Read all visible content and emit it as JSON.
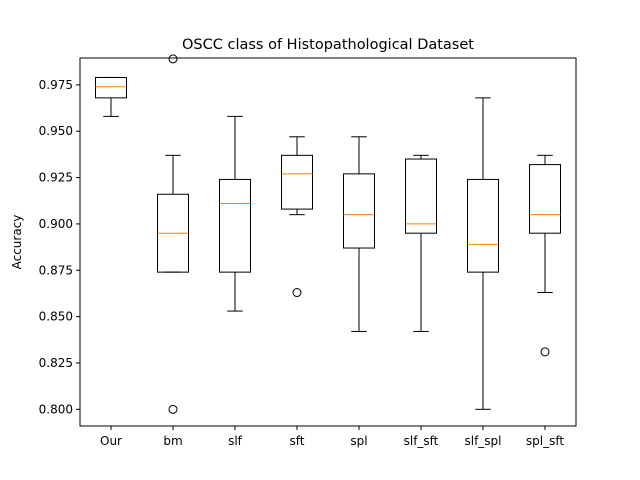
{
  "chart_data": {
    "type": "box",
    "title": "OSCC class of Histopathological Dataset",
    "xlabel": "",
    "ylabel": "Accuracy",
    "ylim": [
      0.791,
      0.9895
    ],
    "yticks": [
      "0.800",
      "0.825",
      "0.850",
      "0.875",
      "0.900",
      "0.925",
      "0.950",
      "0.975"
    ],
    "categories": [
      "Our",
      "bm",
      "slf",
      "sft",
      "spl",
      "slf_sft",
      "slf_spl",
      "spl_sft"
    ],
    "boxes": [
      {
        "label": "Our",
        "whisker_low": 0.958,
        "q1": 0.968,
        "median": 0.974,
        "q3": 0.979,
        "whisker_high": 0.979,
        "outliers": []
      },
      {
        "label": "bm",
        "whisker_low": 0.874,
        "q1": 0.874,
        "median": 0.895,
        "q3": 0.916,
        "whisker_high": 0.937,
        "outliers": [
          0.989,
          0.8
        ]
      },
      {
        "label": "slf",
        "whisker_low": 0.853,
        "q1": 0.874,
        "median": 0.911,
        "q3": 0.924,
        "whisker_high": 0.958,
        "outliers": []
      },
      {
        "label": "sft",
        "whisker_low": 0.905,
        "q1": 0.908,
        "median": 0.927,
        "q3": 0.937,
        "whisker_high": 0.947,
        "outliers": [
          0.863
        ]
      },
      {
        "label": "spl",
        "whisker_low": 0.842,
        "q1": 0.887,
        "median": 0.905,
        "q3": 0.927,
        "whisker_high": 0.947,
        "outliers": []
      },
      {
        "label": "slf_sft",
        "whisker_low": 0.842,
        "q1": 0.895,
        "median": 0.9,
        "q3": 0.935,
        "whisker_high": 0.937,
        "outliers": []
      },
      {
        "label": "slf_spl",
        "whisker_low": 0.8,
        "q1": 0.874,
        "median": 0.889,
        "q3": 0.924,
        "whisker_high": 0.968,
        "outliers": []
      },
      {
        "label": "spl_sft",
        "whisker_low": 0.863,
        "q1": 0.895,
        "median": 0.905,
        "q3": 0.932,
        "whisker_high": 0.937,
        "outliers": [
          0.831
        ]
      }
    ],
    "grid": false,
    "legend": "none",
    "colors": {
      "box": "#000000",
      "median": "#ff7f0e",
      "outlier": "#000000",
      "background": "#ffffff"
    }
  }
}
